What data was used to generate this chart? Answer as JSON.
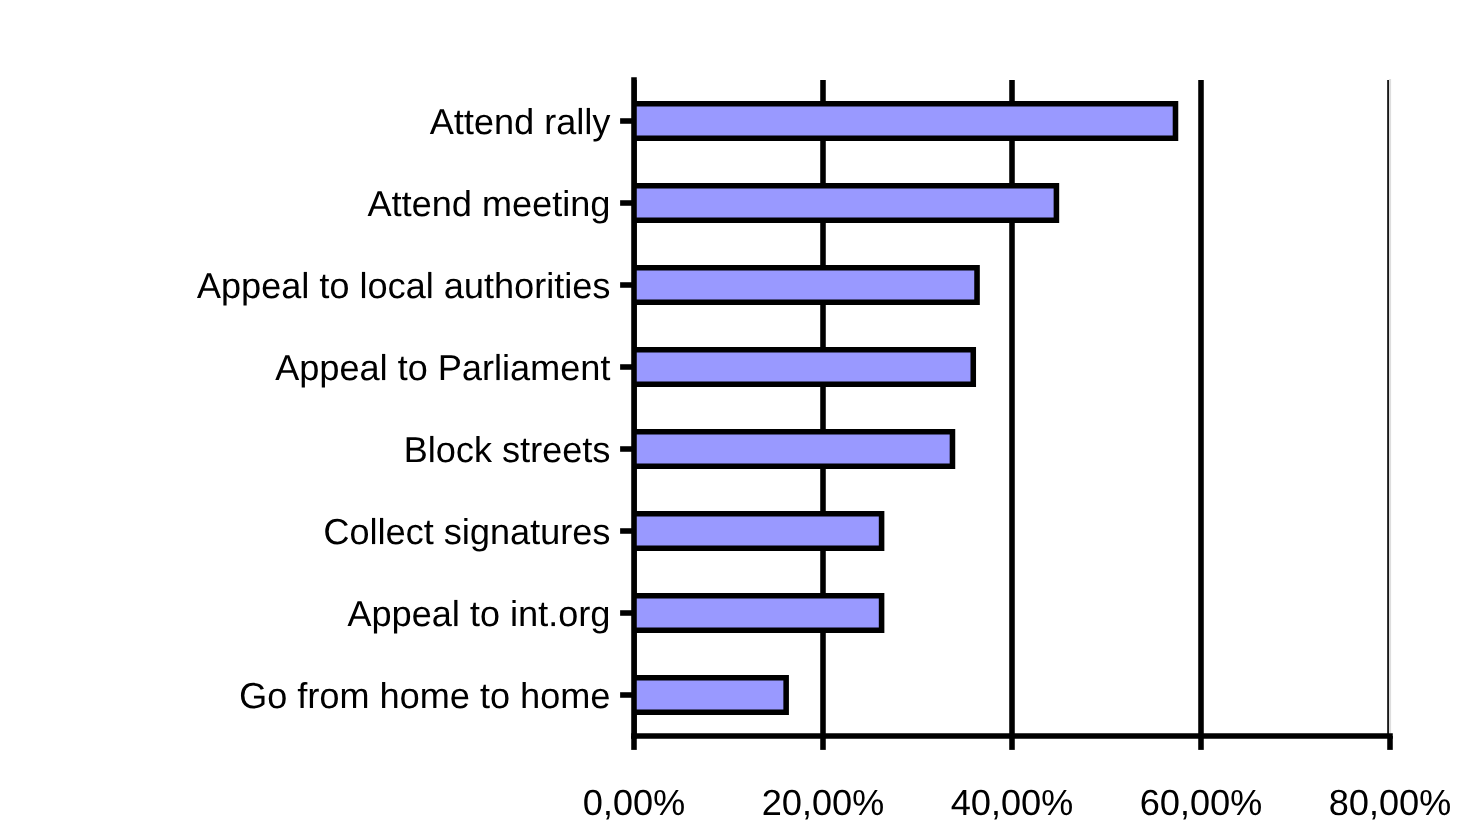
{
  "chart_data": {
    "type": "bar",
    "orientation": "horizontal",
    "categories": [
      "Attend rally",
      "Attend meeting",
      "Appeal to local authorities",
      "Appeal to Parliament",
      "Block streets",
      "Collect signatures",
      "Appeal to int.org",
      "Go from home to home"
    ],
    "values": [
      57.3,
      44.7,
      36.3,
      35.9,
      33.7,
      26.2,
      26.2,
      16.1
    ],
    "color": "#9999ff",
    "xlim": [
      0,
      80
    ],
    "xticks": [
      {
        "value": 0,
        "label": "0,00%"
      },
      {
        "value": 20,
        "label": "20,00%"
      },
      {
        "value": 40,
        "label": "40,00%"
      },
      {
        "value": 60,
        "label": "60,00%"
      },
      {
        "value": 80,
        "label": "80,00%"
      }
    ],
    "grid": "x",
    "legend": false
  }
}
